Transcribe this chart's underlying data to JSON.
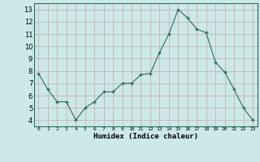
{
  "x": [
    0,
    1,
    2,
    3,
    4,
    5,
    6,
    7,
    8,
    9,
    10,
    11,
    12,
    13,
    14,
    15,
    16,
    17,
    18,
    19,
    20,
    21,
    22,
    23
  ],
  "y": [
    7.8,
    6.5,
    5.5,
    5.5,
    4.0,
    5.0,
    5.5,
    6.3,
    6.3,
    7.0,
    7.0,
    7.7,
    7.8,
    9.5,
    11.0,
    13.0,
    12.3,
    11.4,
    11.1,
    8.7,
    7.9,
    6.5,
    5.0,
    4.0
  ],
  "xlabel": "Humidex (Indice chaleur)",
  "ylabel": "",
  "title": "",
  "xlim": [
    -0.5,
    23.5
  ],
  "ylim": [
    3.5,
    13.5
  ],
  "yticks": [
    4,
    5,
    6,
    7,
    8,
    9,
    10,
    11,
    12,
    13
  ],
  "xticks": [
    0,
    1,
    2,
    3,
    4,
    5,
    6,
    7,
    8,
    9,
    10,
    11,
    12,
    13,
    14,
    15,
    16,
    17,
    18,
    19,
    20,
    21,
    22,
    23
  ],
  "xtick_labels": [
    "0",
    "1",
    "2",
    "3",
    "4",
    "5",
    "6",
    "7",
    "8",
    "9",
    "10",
    "11",
    "12",
    "13",
    "14",
    "15",
    "16",
    "17",
    "18",
    "19",
    "20",
    "21",
    "22",
    "23"
  ],
  "line_color": "#2e6b5e",
  "marker": "+",
  "bg_color": "#cce8e8",
  "grid_color_major": "#b8d8d8",
  "grid_color_minor": "#d8ecec"
}
